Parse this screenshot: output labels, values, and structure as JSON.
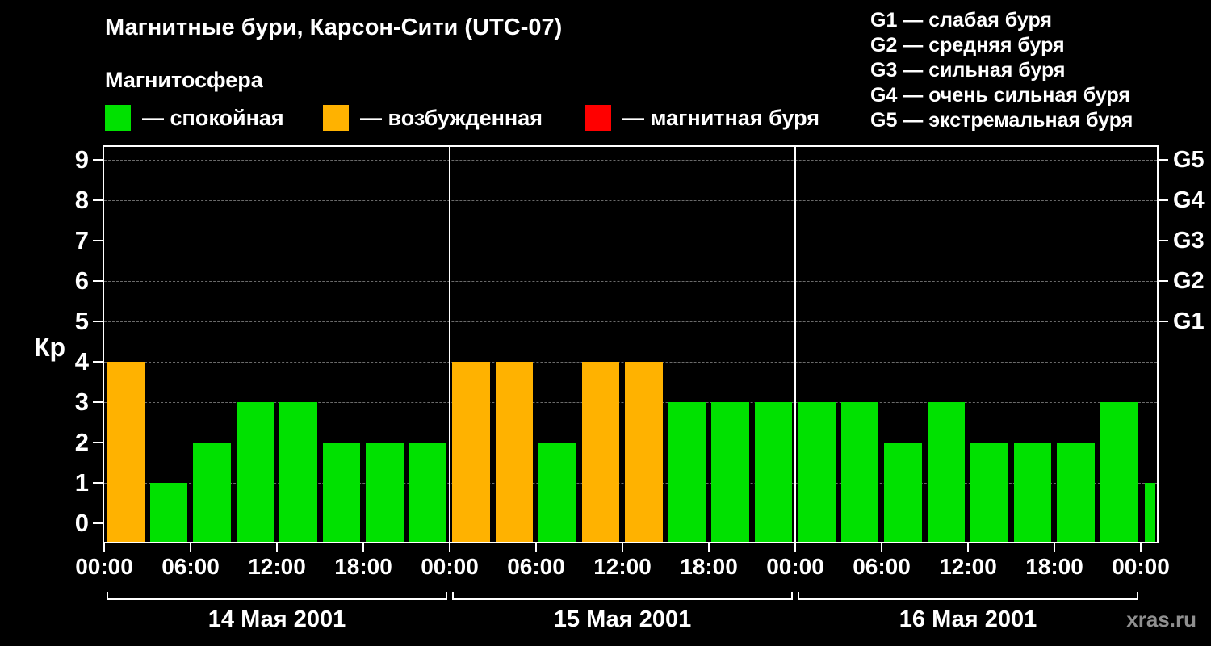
{
  "title": "Магнитные бури, Карсон-Сити (UTC-07)",
  "subtitle": "Магнитосфера",
  "legend": [
    {
      "name": "quiet",
      "label": "— спокойная",
      "color": "#00e100"
    },
    {
      "name": "excited",
      "label": "— возбужденная",
      "color": "#ffb200"
    },
    {
      "name": "storm",
      "label": "— магнитная буря",
      "color": "#ff0000"
    }
  ],
  "storm_scale": [
    "G1 — слабая буря",
    "G2 — средняя буря",
    "G3 — сильная буря",
    "G4 — очень сильная буря",
    "G5 — экстремальная буря"
  ],
  "watermark": "xras.ru",
  "chart_data": {
    "type": "bar",
    "title": "Магнитные бури, Карсон-Сити (UTC-07)",
    "ylabel": "Кр",
    "ylim": [
      0,
      9
    ],
    "yticks": [
      0,
      1,
      2,
      3,
      4,
      5,
      6,
      7,
      8,
      9
    ],
    "grid": "dashed-horizontal",
    "bar_interval_hours": 3,
    "x_tick_labels": [
      "00:00",
      "06:00",
      "12:00",
      "18:00",
      "00:00",
      "06:00",
      "12:00",
      "18:00",
      "00:00",
      "06:00",
      "12:00",
      "18:00",
      "00:00"
    ],
    "right_axis_labels": [
      {
        "kp": 5,
        "label": "G1"
      },
      {
        "kp": 6,
        "label": "G2"
      },
      {
        "kp": 7,
        "label": "G3"
      },
      {
        "kp": 8,
        "label": "G4"
      },
      {
        "kp": 9,
        "label": "G5"
      }
    ],
    "days": [
      {
        "label": "14 Мая 2001",
        "values": [
          4,
          1,
          2,
          3,
          3,
          2,
          2,
          2
        ]
      },
      {
        "label": "15 Мая 2001",
        "values": [
          4,
          4,
          2,
          4,
          4,
          3,
          3,
          3
        ]
      },
      {
        "label": "16 Мая 2001",
        "values": [
          3,
          3,
          2,
          3,
          2,
          2,
          2,
          3
        ]
      }
    ],
    "next_period_partial_value": 1,
    "colors": {
      "quiet": "#00e100",
      "excited": "#ffb200",
      "storm": "#ff0000"
    },
    "color_thresholds": {
      "quiet_max_kp": 3,
      "excited_max_kp": 4
    }
  }
}
